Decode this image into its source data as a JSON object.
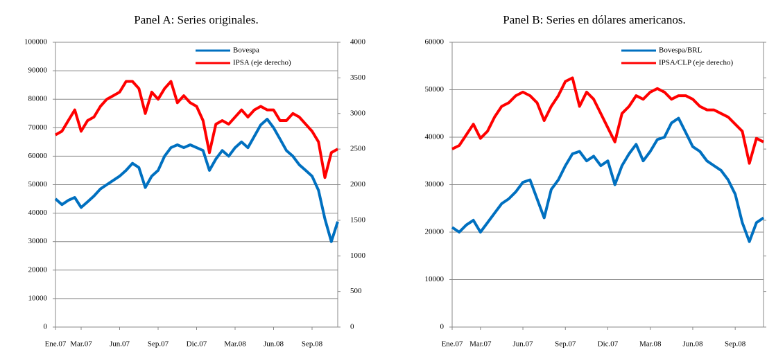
{
  "chart_data": [
    {
      "type": "line",
      "title": "Panel A: Series originales.",
      "categories": [
        "Ene.07",
        null,
        null,
        null,
        "Mar.07",
        null,
        null,
        null,
        null,
        null,
        "Jun.07",
        null,
        null,
        null,
        null,
        null,
        "Sep.07",
        null,
        null,
        null,
        null,
        null,
        "Dic.07",
        null,
        null,
        null,
        null,
        null,
        "Mar.08",
        null,
        null,
        null,
        null,
        null,
        "Jun.08",
        null,
        null,
        null,
        null,
        null,
        "Sep.08",
        null,
        null,
        null,
        null
      ],
      "series": [
        {
          "name": "Bovespa",
          "color": "#0070c0",
          "axis": "y",
          "values": [
            45000,
            43000,
            44500,
            45500,
            42000,
            44000,
            46000,
            48500,
            50000,
            51500,
            53000,
            55000,
            57500,
            56000,
            49000,
            53000,
            55000,
            60000,
            63000,
            64000,
            63000,
            64000,
            63000,
            62000,
            55000,
            59000,
            62000,
            60000,
            63000,
            65000,
            63000,
            67000,
            71000,
            73000,
            70000,
            66000,
            62000,
            60000,
            57000,
            55000,
            53000,
            48000,
            38000,
            30000,
            37000
          ]
        },
        {
          "name": "IPSA (eje derecho)",
          "color": "#ff0000",
          "axis": "y2",
          "values": [
            2700,
            2750,
            2900,
            3050,
            2750,
            2900,
            2950,
            3100,
            3200,
            3250,
            3300,
            3450,
            3450,
            3350,
            3000,
            3300,
            3200,
            3350,
            3450,
            3150,
            3250,
            3150,
            3100,
            2900,
            2450,
            2850,
            2900,
            2850,
            2950,
            3050,
            2950,
            3050,
            3100,
            3050,
            3050,
            2900,
            2900,
            3000,
            2950,
            2850,
            2750,
            2600,
            2100,
            2450,
            2500
          ]
        }
      ],
      "ylim": [
        0,
        100000
      ],
      "yticks": [
        0,
        10000,
        20000,
        30000,
        40000,
        50000,
        60000,
        70000,
        80000,
        90000,
        100000
      ],
      "y2lim": [
        0,
        4000
      ],
      "y2ticks": [
        0,
        500,
        1000,
        1500,
        2000,
        2500,
        3000,
        3500,
        4000
      ],
      "grid": true,
      "legend": "top-right"
    },
    {
      "type": "line",
      "title": "Panel B: Series en dólares americanos.",
      "categories": [
        "Ene.07",
        null,
        null,
        null,
        "Mar.07",
        null,
        null,
        null,
        null,
        null,
        "Jun.07",
        null,
        null,
        null,
        null,
        null,
        "Sep.07",
        null,
        null,
        null,
        null,
        null,
        "Dic.07",
        null,
        null,
        null,
        null,
        null,
        "Mar.08",
        null,
        null,
        null,
        null,
        null,
        "Jun.08",
        null,
        null,
        null,
        null,
        null,
        "Sep.08",
        null,
        null,
        null,
        null
      ],
      "series": [
        {
          "name": "Bovespa/BRL",
          "color": "#0070c0",
          "axis": "y",
          "values": [
            21000,
            20000,
            21500,
            22500,
            20000,
            22000,
            24000,
            26000,
            27000,
            28500,
            30500,
            31000,
            27000,
            23000,
            29000,
            31000,
            34000,
            36500,
            37000,
            35000,
            36000,
            34000,
            35000,
            30000,
            34000,
            36500,
            38500,
            35000,
            37000,
            39500,
            40000,
            43000,
            44000,
            41000,
            38000,
            37000,
            35000,
            34000,
            33000,
            31000,
            28000,
            22000,
            18000,
            22000,
            23000
          ]
        },
        {
          "name": "IPSA/CLP (eje derecho)",
          "color": "#ff0000",
          "axis": "y2",
          "values": [
            5.0,
            5.1,
            5.4,
            5.7,
            5.3,
            5.5,
            5.9,
            6.2,
            6.3,
            6.5,
            6.6,
            6.5,
            6.3,
            5.8,
            6.2,
            6.5,
            6.9,
            7.0,
            6.2,
            6.6,
            6.4,
            6.0,
            5.6,
            5.2,
            6.0,
            6.2,
            6.5,
            6.4,
            6.6,
            6.7,
            6.6,
            6.4,
            6.5,
            6.5,
            6.4,
            6.2,
            6.1,
            6.1,
            6.0,
            5.9,
            5.7,
            5.5,
            4.6,
            5.3,
            5.2
          ]
        }
      ],
      "ylim": [
        0,
        60000
      ],
      "yticks": [
        0,
        10000,
        20000,
        30000,
        40000,
        50000,
        60000
      ],
      "y2lim": [
        0,
        8
      ],
      "y2ticks": [
        0,
        1,
        2,
        3,
        4,
        5,
        6,
        7,
        8
      ],
      "grid": true,
      "legend": "top-right"
    }
  ]
}
